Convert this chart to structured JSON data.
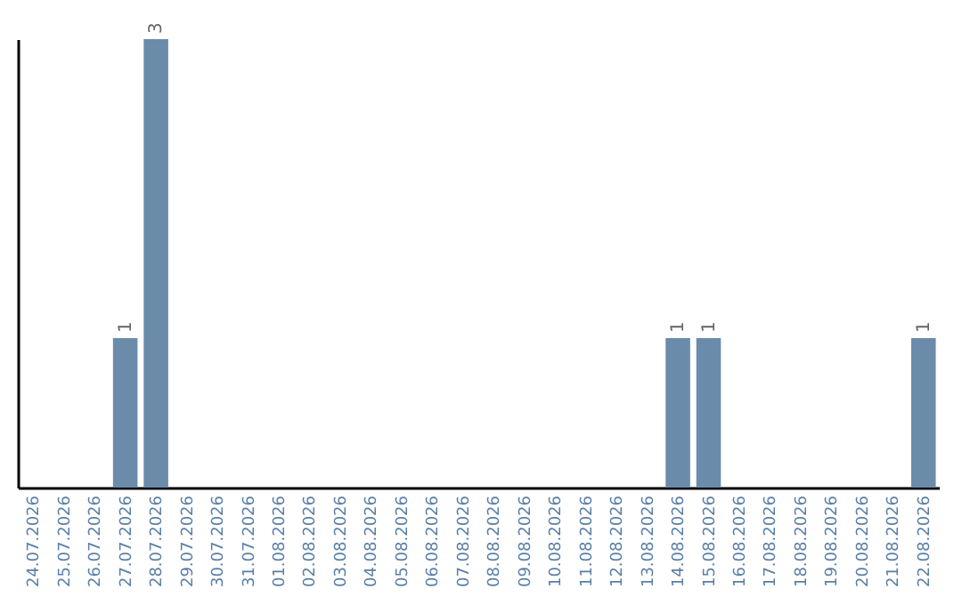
{
  "chart_data": {
    "type": "bar",
    "categories": [
      "24.07.2026",
      "25.07.2026",
      "26.07.2026",
      "27.07.2026",
      "28.07.2026",
      "29.07.2026",
      "30.07.2026",
      "31.07.2026",
      "01.08.2026",
      "02.08.2026",
      "03.08.2026",
      "04.08.2026",
      "05.08.2026",
      "06.08.2026",
      "07.08.2026",
      "08.08.2026",
      "09.08.2026",
      "10.08.2026",
      "11.08.2026",
      "12.08.2026",
      "13.08.2026",
      "14.08.2026",
      "15.08.2026",
      "16.08.2026",
      "17.08.2026",
      "18.08.2026",
      "19.08.2026",
      "20.08.2026",
      "21.08.2026",
      "22.08.2026"
    ],
    "values": [
      0,
      0,
      0,
      1,
      3,
      0,
      0,
      0,
      0,
      0,
      0,
      0,
      0,
      0,
      0,
      0,
      0,
      0,
      0,
      0,
      0,
      1,
      1,
      0,
      0,
      0,
      0,
      0,
      0,
      1
    ],
    "value_labels": [
      null,
      null,
      null,
      "1",
      "3",
      null,
      null,
      null,
      null,
      null,
      null,
      null,
      null,
      null,
      null,
      null,
      null,
      null,
      null,
      null,
      null,
      "1",
      "1",
      null,
      null,
      null,
      null,
      null,
      null,
      "1"
    ],
    "color": "#6a8caa",
    "ylim": [
      0,
      3
    ],
    "tick_labels": "x"
  }
}
